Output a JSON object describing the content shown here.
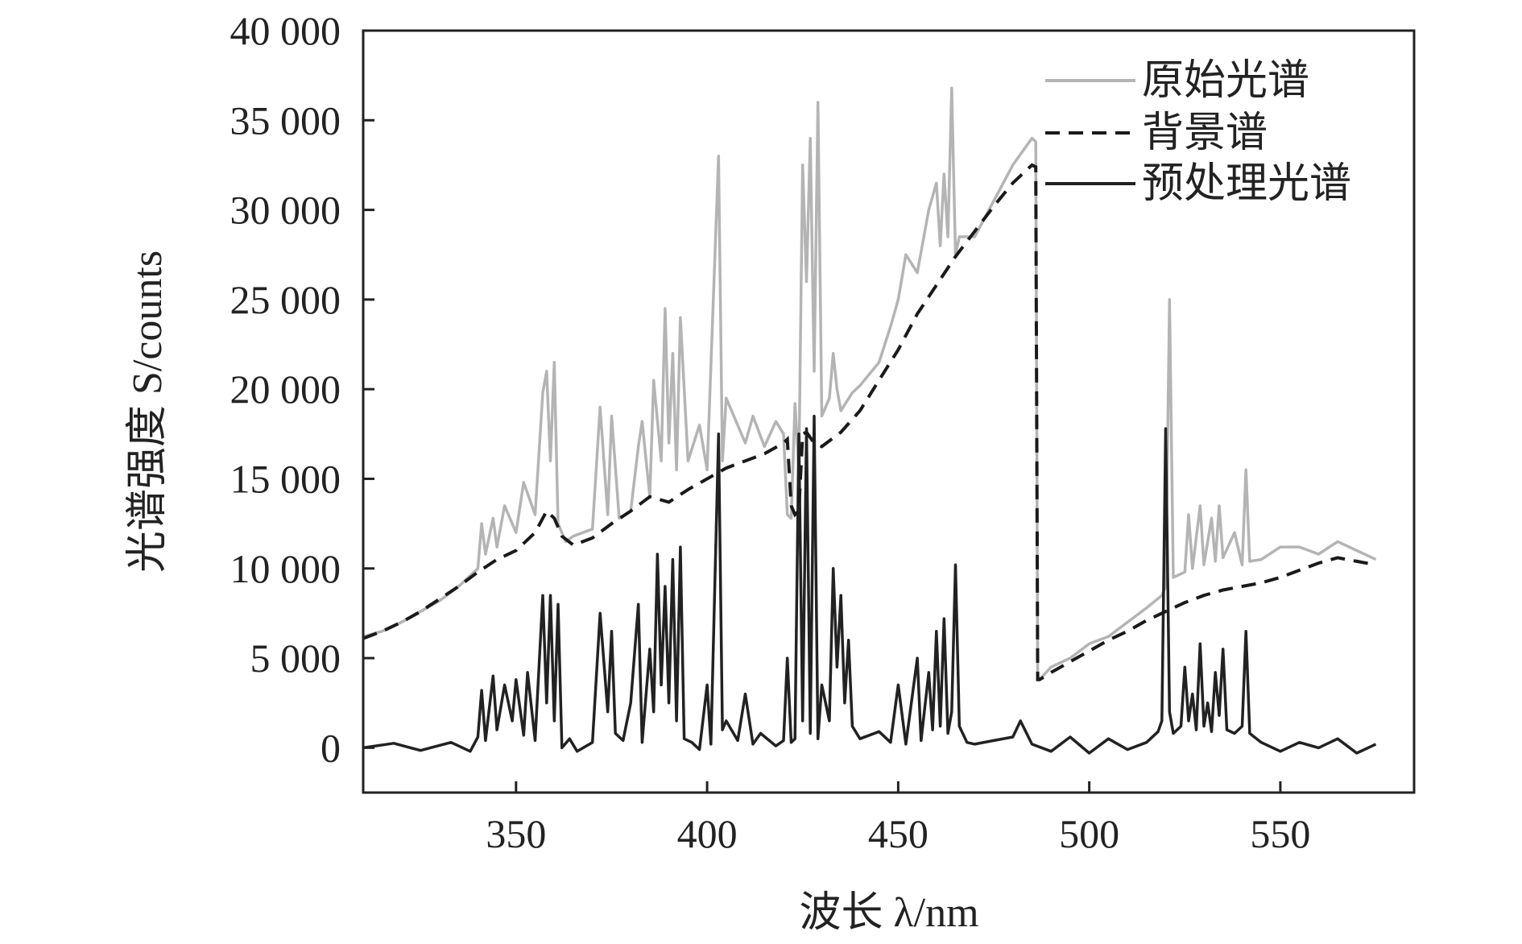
{
  "chart_data": {
    "type": "line",
    "xlabel": "波长 λ/nm",
    "ylabel": "光谱强度 S/counts",
    "xlim": [
      310,
      585
    ],
    "ylim": [
      -2500,
      40000
    ],
    "x_ticks": [
      350,
      400,
      450,
      500,
      550
    ],
    "x_tick_labels": [
      "350",
      "400",
      "450",
      "500",
      "550"
    ],
    "y_ticks": [
      0,
      5000,
      10000,
      15000,
      20000,
      25000,
      30000,
      35000,
      40000
    ],
    "y_tick_labels": [
      "0",
      "5 000",
      "10 000",
      "15 000",
      "20 000",
      "25 000",
      "30 000",
      "35 000",
      "40 000"
    ],
    "grid": false,
    "legend_position": "top-right",
    "series": [
      {
        "name": "原始光谱",
        "color": "#b4b4b4",
        "style": "solid",
        "x": [
          310,
          315,
          320,
          325,
          330,
          335,
          340,
          341,
          342,
          344,
          345,
          347,
          350,
          352,
          355,
          357,
          358,
          359,
          360,
          361,
          363,
          365,
          370,
          372,
          374,
          375,
          377,
          380,
          382,
          383,
          385,
          386,
          388,
          389,
          390,
          391,
          392,
          393,
          395,
          398,
          400,
          403,
          404,
          405,
          410,
          412,
          415,
          418,
          420,
          421,
          422,
          423,
          424,
          425,
          426,
          427,
          428,
          429,
          430,
          432,
          433,
          434,
          435,
          438,
          440,
          445,
          448,
          450,
          452,
          455,
          458,
          460,
          461,
          462,
          463,
          464,
          465,
          466,
          470,
          475,
          480,
          485,
          486,
          486.5,
          487,
          490,
          495,
          500,
          505,
          510,
          515,
          519,
          520,
          521,
          522,
          525,
          526,
          527,
          529,
          530,
          532,
          533,
          534,
          535,
          538,
          540,
          541,
          542,
          545,
          550,
          555,
          560,
          565,
          570,
          575
        ],
        "y": [
          6200,
          6500,
          7000,
          7600,
          8200,
          9000,
          10000,
          12500,
          10800,
          12800,
          11200,
          13500,
          12000,
          14800,
          13000,
          19800,
          21000,
          16000,
          21500,
          12500,
          11500,
          11800,
          12200,
          19000,
          13000,
          18500,
          12800,
          13200,
          16800,
          18200,
          14000,
          20500,
          16000,
          24500,
          17000,
          22000,
          15500,
          24000,
          16000,
          18000,
          15500,
          33000,
          16000,
          19500,
          17000,
          18500,
          16800,
          18200,
          17500,
          13000,
          12800,
          19200,
          15500,
          32500,
          26000,
          34000,
          21000,
          36000,
          18500,
          19500,
          22000,
          20000,
          18800,
          19800,
          20200,
          21500,
          23500,
          25000,
          27500,
          26500,
          30000,
          31500,
          28000,
          32000,
          28500,
          36800,
          27500,
          28500,
          28500,
          30500,
          32500,
          34000,
          33800,
          4000,
          3800,
          4500,
          5000,
          5800,
          6200,
          7000,
          7800,
          8500,
          9000,
          25000,
          9500,
          9800,
          13000,
          10000,
          13500,
          10200,
          12800,
          10400,
          13500,
          10600,
          12000,
          10200,
          15500,
          10400,
          10500,
          11200,
          11200,
          10800,
          11500,
          11000,
          10500
        ]
      },
      {
        "name": "背景谱",
        "color": "#1a1a1a",
        "style": "dashed",
        "x": [
          310,
          315,
          320,
          325,
          330,
          335,
          340,
          345,
          350,
          355,
          358,
          360,
          362,
          365,
          370,
          375,
          380,
          385,
          390,
          395,
          400,
          405,
          410,
          415,
          420,
          421,
          422,
          423,
          424,
          425,
          426,
          428,
          430,
          435,
          440,
          445,
          450,
          455,
          460,
          465,
          470,
          475,
          480,
          485,
          486,
          486.5,
          487,
          490,
          495,
          500,
          505,
          510,
          515,
          520,
          525,
          530,
          535,
          540,
          545,
          550,
          555,
          560,
          565,
          570,
          575
        ],
        "y": [
          6100,
          6500,
          7000,
          7600,
          8300,
          9000,
          9800,
          10500,
          11000,
          12000,
          13200,
          12800,
          11800,
          11300,
          11700,
          12500,
          13200,
          14000,
          13700,
          14400,
          15000,
          15600,
          16000,
          16400,
          17000,
          17200,
          13500,
          13000,
          13200,
          17500,
          17600,
          17000,
          16800,
          17600,
          18800,
          20500,
          22200,
          24200,
          25800,
          27400,
          28800,
          30200,
          31500,
          32500,
          32400,
          3800,
          3800,
          4200,
          4800,
          5400,
          6000,
          6500,
          7100,
          7600,
          8100,
          8500,
          8800,
          9000,
          9200,
          9500,
          9900,
          10300,
          10600,
          10400,
          10200
        ]
      },
      {
        "name": "预处理光谱",
        "color": "#222222",
        "style": "solid",
        "x": [
          310,
          318,
          325,
          333,
          338,
          340,
          341,
          342,
          344,
          345,
          347,
          349,
          350,
          352,
          353,
          355,
          357,
          358,
          359,
          360,
          361,
          362,
          364,
          366,
          370,
          372,
          374,
          375,
          376,
          378,
          380,
          382,
          383,
          385,
          386,
          387,
          388,
          389,
          390,
          391,
          392,
          393,
          394,
          396,
          398,
          400,
          401,
          403,
          404,
          405,
          408,
          410,
          412,
          414,
          418,
          420,
          421,
          422,
          423,
          424,
          425,
          426,
          427,
          428,
          429,
          430,
          432,
          433,
          434,
          435,
          436,
          437,
          438,
          440,
          445,
          448,
          450,
          452,
          455,
          456,
          458,
          459,
          460,
          461,
          462,
          463,
          464,
          465,
          466,
          468,
          470,
          475,
          480,
          482,
          485,
          490,
          495,
          500,
          505,
          510,
          515,
          518,
          519,
          520,
          521,
          522,
          524,
          525,
          526,
          527,
          528,
          529,
          530,
          531,
          532,
          533,
          534,
          535,
          536,
          538,
          540,
          541,
          542,
          545,
          550,
          555,
          560,
          565,
          570,
          575
        ],
        "y": [
          0,
          250,
          -150,
          300,
          -200,
          600,
          3200,
          400,
          4000,
          1000,
          3500,
          1500,
          3800,
          700,
          4200,
          400,
          8500,
          2500,
          8500,
          1500,
          8000,
          0,
          500,
          -200,
          300,
          7500,
          2000,
          6500,
          800,
          400,
          2500,
          8000,
          300,
          5500,
          2000,
          10800,
          3500,
          9000,
          2500,
          10500,
          1500,
          11200,
          500,
          300,
          -100,
          3500,
          200,
          17500,
          1000,
          1500,
          400,
          3000,
          200,
          800,
          100,
          400,
          5000,
          300,
          500,
          17500,
          1500,
          17800,
          800,
          18500,
          500,
          3500,
          1500,
          10000,
          4500,
          8500,
          2500,
          6000,
          1200,
          500,
          900,
          300,
          3500,
          200,
          5000,
          400,
          4200,
          1000,
          6500,
          1200,
          7200,
          800,
          2000,
          10200,
          1200,
          300,
          200,
          400,
          600,
          1500,
          200,
          -200,
          600,
          -300,
          500,
          -100,
          300,
          900,
          1500,
          17800,
          2000,
          800,
          1200,
          4500,
          1500,
          3000,
          1000,
          5800,
          1200,
          2500,
          900,
          4200,
          1800,
          5500,
          1000,
          800,
          1200,
          6500,
          800,
          300,
          -200,
          300,
          0,
          500,
          -300,
          200
        ]
      }
    ]
  }
}
